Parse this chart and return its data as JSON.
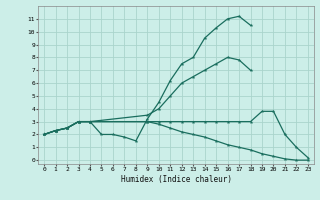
{
  "xlabel": "Humidex (Indice chaleur)",
  "background_color": "#cceee8",
  "grid_color": "#aad4cc",
  "line_color": "#1a6e5e",
  "xlim": [
    -0.5,
    23.5
  ],
  "ylim": [
    -0.3,
    12
  ],
  "xticks": [
    0,
    1,
    2,
    3,
    4,
    5,
    6,
    7,
    8,
    9,
    10,
    11,
    12,
    13,
    14,
    15,
    16,
    17,
    18,
    19,
    20,
    21,
    22,
    23
  ],
  "yticks": [
    0,
    1,
    2,
    3,
    4,
    5,
    6,
    7,
    8,
    9,
    10,
    11
  ],
  "lines": [
    {
      "x": [
        0,
        1,
        2,
        3,
        4,
        5,
        6,
        7,
        8,
        9,
        10,
        11,
        12,
        13,
        14,
        15,
        16,
        17,
        18
      ],
      "y": [
        2.0,
        2.3,
        2.5,
        3.0,
        3.0,
        2.0,
        2.0,
        1.8,
        1.5,
        3.2,
        4.5,
        6.2,
        7.5,
        8.0,
        9.5,
        10.3,
        11.0,
        11.2,
        10.5
      ]
    },
    {
      "x": [
        0,
        1,
        2,
        3,
        4,
        9,
        10,
        11,
        12,
        13,
        14,
        15,
        16,
        17,
        18
      ],
      "y": [
        2.0,
        2.3,
        2.5,
        3.0,
        3.0,
        3.5,
        4.0,
        5.0,
        6.0,
        6.5,
        7.0,
        7.5,
        8.0,
        7.8,
        7.0
      ]
    },
    {
      "x": [
        0,
        1,
        2,
        3,
        4,
        9,
        10,
        11,
        12,
        13,
        14,
        15,
        16,
        17,
        18,
        19,
        20,
        21,
        22,
        23
      ],
      "y": [
        2.0,
        2.3,
        2.5,
        3.0,
        3.0,
        3.0,
        3.0,
        3.0,
        3.0,
        3.0,
        3.0,
        3.0,
        3.0,
        3.0,
        3.0,
        3.8,
        3.8,
        2.0,
        1.0,
        0.2
      ]
    },
    {
      "x": [
        0,
        1,
        2,
        3,
        4,
        9,
        10,
        11,
        12,
        13,
        14,
        15,
        16,
        17,
        18,
        19,
        20,
        21,
        22,
        23
      ],
      "y": [
        2.0,
        2.3,
        2.5,
        3.0,
        3.0,
        3.0,
        2.8,
        2.5,
        2.2,
        2.0,
        1.8,
        1.5,
        1.2,
        1.0,
        0.8,
        0.5,
        0.3,
        0.1,
        0.0,
        0.0
      ]
    }
  ]
}
